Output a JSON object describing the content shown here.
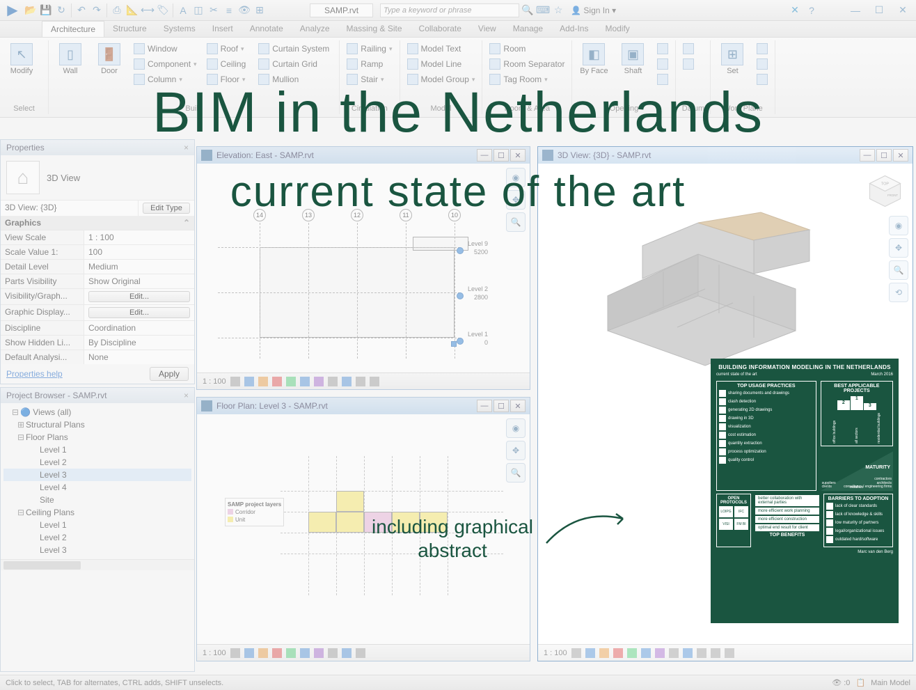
{
  "qat": {
    "doc_title": "SAMP.rvt",
    "search_placeholder": "Type a keyword or phrase",
    "signin": "Sign In"
  },
  "tabs": [
    "Architecture",
    "Structure",
    "Systems",
    "Insert",
    "Annotate",
    "Analyze",
    "Massing & Site",
    "Collaborate",
    "View",
    "Manage",
    "Add-Ins",
    "Modify"
  ],
  "active_tab": 0,
  "ribbon": {
    "select": "Select",
    "modify": "Modify",
    "wall": "Wall",
    "door": "Door",
    "build_label": "Build",
    "build_items": [
      "Window",
      "Component",
      "Column",
      "Roof",
      "Ceiling",
      "Floor",
      "Curtain System",
      "Curtain Grid",
      "Mullion"
    ],
    "circ_label": "Circulation",
    "circ_items": [
      "Railing",
      "Ramp",
      "Stair"
    ],
    "model_label": "Model",
    "model_items": [
      "Model Text",
      "Model Line",
      "Model Group"
    ],
    "room_label": "Room & Area",
    "room_items": [
      "Room",
      "Room Separator",
      "Tag Room"
    ],
    "opening_label": "Opening",
    "opening_items": [
      "By Face",
      "Shaft"
    ],
    "datum_label": "Datum",
    "workplane_label": "Work Plane",
    "set": "Set"
  },
  "props": {
    "panel_title": "Properties",
    "type_name": "3D View",
    "view_name": "3D View: {3D}",
    "edit_type": "Edit Type",
    "section": "Graphics",
    "rows": [
      {
        "k": "View Scale",
        "v": "1 : 100"
      },
      {
        "k": "Scale Value   1:",
        "v": "100"
      },
      {
        "k": "Detail Level",
        "v": "Medium"
      },
      {
        "k": "Parts Visibility",
        "v": "Show Original"
      },
      {
        "k": "Visibility/Graph...",
        "v": "",
        "btn": "Edit..."
      },
      {
        "k": "Graphic Display...",
        "v": "",
        "btn": "Edit..."
      },
      {
        "k": "Discipline",
        "v": "Coordination"
      },
      {
        "k": "Show Hidden Li...",
        "v": "By Discipline"
      },
      {
        "k": "Default Analysi...",
        "v": "None"
      }
    ],
    "help": "Properties help",
    "apply": "Apply"
  },
  "browser": {
    "panel_title": "Project Browser - SAMP.rvt",
    "root": "Views (all)",
    "groups": [
      {
        "name": "Structural Plans",
        "children": []
      },
      {
        "name": "Floor Plans",
        "children": [
          "Level 1",
          "Level 2",
          "Level 3",
          "Level 4",
          "Site"
        ],
        "selected": "Level 3"
      },
      {
        "name": "Ceiling Plans",
        "children": [
          "Level 1",
          "Level 2",
          "Level 3"
        ]
      }
    ]
  },
  "views": {
    "elev": {
      "title": "Elevation: East - SAMP.rvt",
      "scale": "1 : 100",
      "grids": [
        "14",
        "13",
        "12",
        "11",
        "10"
      ],
      "levels": [
        {
          "name": "Level 9",
          "h": "5200"
        },
        {
          "name": "Level 2",
          "h": "2800"
        },
        {
          "name": "Level 1",
          "h": "0"
        }
      ]
    },
    "fp": {
      "title": "Floor Plan: Level 3 - SAMP.rvt",
      "scale": "1 : 100",
      "legend_title": "SAMP project layers",
      "legend_items": [
        "Corridor",
        "Unit"
      ]
    },
    "v3d": {
      "title": "3D View: {3D} - SAMP.rvt",
      "scale": "1 : 100"
    }
  },
  "infographic": {
    "title": "BUILDING INFORMATION MODELING IN THE NETHERLANDS",
    "sub_left": "current state of the art",
    "sub_right": "March 2016",
    "usage_title": "TOP USAGE PRACTICES",
    "usage": [
      "sharing documents and drawings",
      "clash detection",
      "generating 2D drawings",
      "drawing in 3D",
      "visualization",
      "cost estimation",
      "quantity extraction",
      "process optimization",
      "quality control"
    ],
    "projects_title": "BEST APPLICABLE PROJECTS",
    "podium": [
      "2",
      "1",
      "3"
    ],
    "podium_labels": [
      "office buildings",
      "all sectors",
      "residential buildings"
    ],
    "maturity_title": "MATURITY",
    "maturity": [
      "contractors",
      "architects",
      "consultancy / engineering firms",
      "suppliers",
      "clients",
      "installers"
    ],
    "protocols_title": "OPEN PROTOCOLS",
    "protocols": [
      "LOIPG",
      "IFC",
      "VISI",
      "FM BI"
    ],
    "benefits_title": "TOP BENEFITS",
    "benefits": [
      "better collaboration with external parties",
      "more efficient work planning",
      "more efficient construction",
      "optimal end result for client"
    ],
    "barriers_title": "BARRIERS TO ADOPTION",
    "barriers": [
      "lack of clear standards",
      "lack of knowledge & skills",
      "low maturity of partners",
      "legal/organizational issues",
      "outdated hard/software"
    ],
    "author": "Marc van den Berg"
  },
  "status": {
    "hint": "Click to select, TAB for alternates, CTRL adds, SHIFT unselects.",
    "sel": ":0",
    "model": "Main Model"
  },
  "overlay": {
    "line1": "BIM in the Netherlands",
    "line2": "current state of the art",
    "incl": "including graphical abstract"
  },
  "colors": {
    "brand": "#1a5540",
    "ribbon_icon": "#5b8fb9",
    "accent_blue": "#4a90d8"
  }
}
